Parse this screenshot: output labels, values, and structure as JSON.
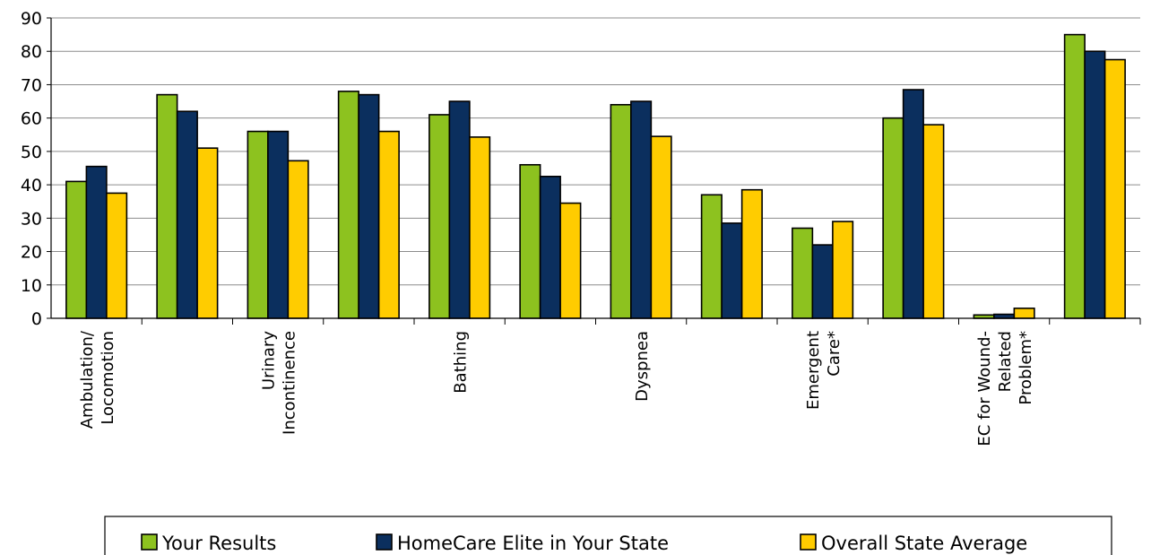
{
  "chart_data": {
    "type": "bar",
    "title": "",
    "xlabel": "",
    "ylabel": "",
    "ylim": [
      0,
      90
    ],
    "yticks": [
      0,
      10,
      20,
      30,
      40,
      50,
      60,
      70,
      80,
      90
    ],
    "grid": true,
    "legend_position": "bottom",
    "categories": [
      [
        "Ambulation/",
        "Locomotion"
      ],
      [],
      [
        "Urinary",
        "Incontinence"
      ],
      [],
      [
        "Bathing"
      ],
      [],
      [
        "Dyspnea"
      ],
      [],
      [
        "Emergent",
        "Care*"
      ],
      [],
      [
        "EC for Wound-",
        "Related",
        "Problem*"
      ],
      []
    ],
    "series": [
      {
        "name": "Your Results",
        "color": "#8DC21F",
        "values": [
          41,
          67,
          56,
          68,
          61,
          46,
          64,
          37,
          27,
          60,
          1,
          85
        ]
      },
      {
        "name": "HomeCare Elite in Your State",
        "color": "#0B2F5E",
        "values": [
          45.5,
          62,
          56,
          67,
          65,
          42.5,
          65,
          28.5,
          22,
          68.5,
          1.2,
          80
        ]
      },
      {
        "name": "Overall State Average",
        "color": "#FFCC00",
        "values": [
          37.5,
          51,
          47.2,
          56,
          54.3,
          34.5,
          54.5,
          38.5,
          29,
          58,
          3,
          77.5
        ]
      }
    ]
  }
}
